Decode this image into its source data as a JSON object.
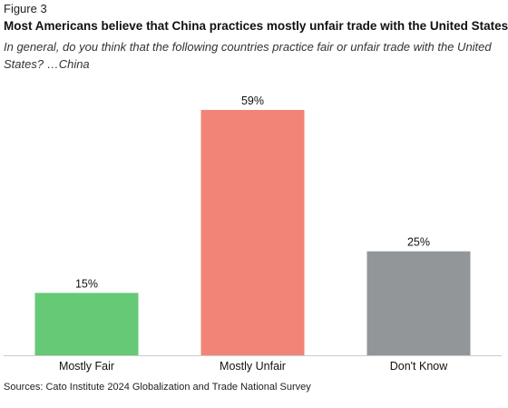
{
  "figure": {
    "label": "Figure 3",
    "title": "Most Americans believe that China practices mostly unfair trade with the United States",
    "subtitle": "In general, do you think that the following countries practice fair or unfair trade with the United States? …China",
    "source": "Sources: Cato Institute 2024 Globalization and Trade National Survey"
  },
  "chart_data": {
    "type": "bar",
    "title": "Most Americans believe that China practices mostly unfair trade with the United States",
    "subtitle": "In general, do you think that the following countries practice fair or unfair trade with the United States? …China",
    "categories": [
      "Mostly Fair",
      "Mostly Unfair",
      "Don't Know"
    ],
    "values": [
      15,
      59,
      25
    ],
    "value_labels": [
      "15%",
      "59%",
      "25%"
    ],
    "colors": [
      "#66c975",
      "#f28477",
      "#939699"
    ],
    "xlabel": "",
    "ylabel": "",
    "ylim": [
      0,
      62
    ],
    "grid": false,
    "legend": "none"
  }
}
